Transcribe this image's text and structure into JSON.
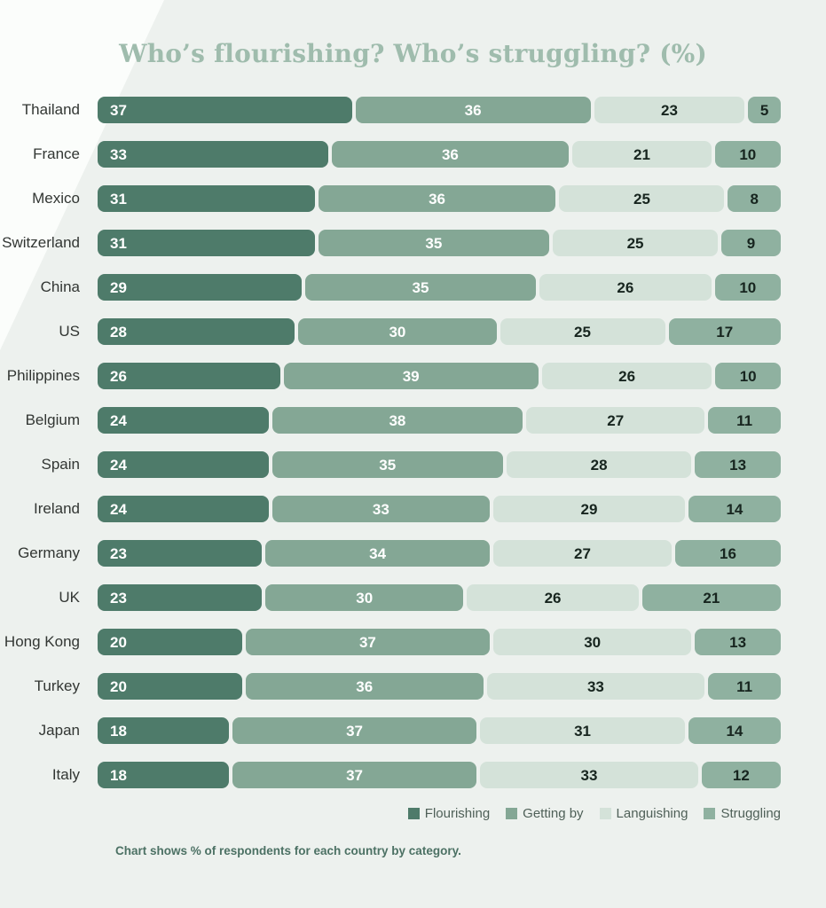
{
  "title": "Who’s flourishing? Who’s struggling? (%)",
  "footnote": "Chart shows % of respondents for each country by category.",
  "colors": {
    "background": "#edf1ee",
    "title": "#9fbcad",
    "flourishing": "#4e7b6a",
    "getting_by": "#84a795",
    "languishing": "#d4e2d9",
    "struggling": "#8fb1a0",
    "value_on_dark": "#ffffff",
    "value_on_light": "#17251f"
  },
  "chart_data": {
    "type": "bar",
    "orientation": "horizontal",
    "stacked": true,
    "title": "Who’s flourishing? Who’s struggling? (%)",
    "xlabel": "",
    "ylabel": "",
    "xlim": [
      0,
      100
    ],
    "grid": false,
    "legend_position": "bottom-right",
    "categories": [
      "Thailand",
      "France",
      "Mexico",
      "Switzerland",
      "China",
      "US",
      "Philippines",
      "Belgium",
      "Spain",
      "Ireland",
      "Germany",
      "UK",
      "Hong Kong",
      "Turkey",
      "Japan",
      "Italy"
    ],
    "series": [
      {
        "name": "Flourishing",
        "color": "#4e7b6a",
        "text_color": "#ffffff",
        "values": [
          37,
          33,
          31,
          31,
          29,
          28,
          26,
          24,
          24,
          24,
          23,
          23,
          20,
          20,
          18,
          18
        ]
      },
      {
        "name": "Getting by",
        "color": "#84a795",
        "text_color": "#ffffff",
        "values": [
          36,
          36,
          36,
          35,
          35,
          30,
          39,
          38,
          35,
          33,
          34,
          30,
          37,
          36,
          37,
          37
        ]
      },
      {
        "name": "Languishing",
        "color": "#d4e2d9",
        "text_color": "#17251f",
        "values": [
          23,
          21,
          25,
          25,
          26,
          25,
          26,
          27,
          28,
          29,
          27,
          26,
          30,
          33,
          31,
          33
        ]
      },
      {
        "name": "Struggling",
        "color": "#8fb1a0",
        "text_color": "#17251f",
        "values": [
          5,
          10,
          8,
          9,
          10,
          17,
          10,
          11,
          13,
          14,
          16,
          21,
          13,
          11,
          14,
          12
        ]
      }
    ]
  }
}
